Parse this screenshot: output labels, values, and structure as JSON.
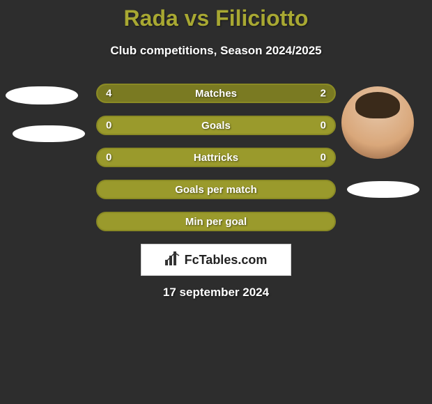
{
  "header": {
    "title": "Rada vs Filiciotto",
    "title_color": "#a8a832",
    "title_fontsize": 32,
    "subtitle": "Club competitions, Season 2024/2025",
    "subtitle_color": "#ffffff",
    "subtitle_fontsize": 17
  },
  "background_color": "#2d2d2d",
  "stats": {
    "bar_bg": "#9a9a2c",
    "bar_border": "#8a8a24",
    "fill_color": "#7a7a22",
    "text_color": "#ffffff",
    "rows": [
      {
        "label": "Matches",
        "left": "4",
        "right": "2",
        "left_pct": 66,
        "right_pct": 34
      },
      {
        "label": "Goals",
        "left": "0",
        "right": "0",
        "left_pct": 0,
        "right_pct": 0
      },
      {
        "label": "Hattricks",
        "left": "0",
        "right": "0",
        "left_pct": 0,
        "right_pct": 0
      },
      {
        "label": "Goals per match",
        "left": "",
        "right": "",
        "left_pct": 0,
        "right_pct": 0
      },
      {
        "label": "Min per goal",
        "left": "",
        "right": "",
        "left_pct": 0,
        "right_pct": 0
      }
    ]
  },
  "logo": {
    "text": "FcTables.com",
    "box_bg": "#ffffff",
    "text_color": "#222222"
  },
  "footer": {
    "date": "17 september 2024",
    "color": "#ffffff"
  }
}
